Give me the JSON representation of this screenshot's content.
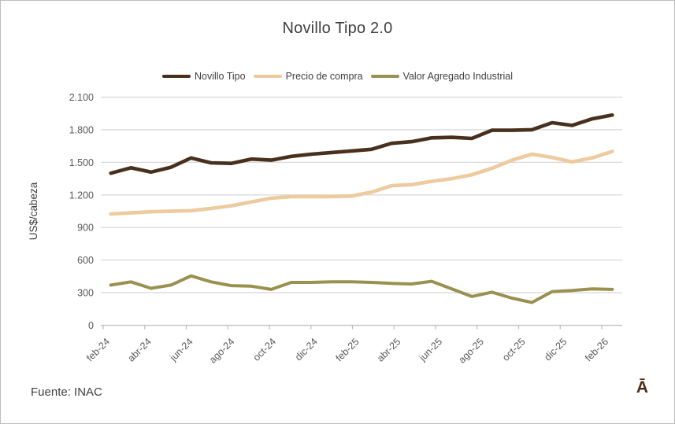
{
  "title": "Novillo Tipo 2.0",
  "source": "Fuente: INAC",
  "logo_glyph": "Ā",
  "colors": {
    "title_text": "#3f3f3f",
    "axis_text": "#595959",
    "gridline": "#d9d9d9",
    "axis_line": "#bfbfbf",
    "frame_border": "#bdbdbd",
    "background": "#ffffff",
    "series_novillo": "#48301d",
    "series_precio": "#eeca9f",
    "series_valor": "#9a9150",
    "logo": "#4c2b15"
  },
  "chart_data": {
    "type": "line",
    "title": "Novillo Tipo 2.0",
    "xlabel": "",
    "ylabel": "US$/cabeza",
    "ylim": [
      0,
      2100
    ],
    "ytick_step": 300,
    "ytick_labels": [
      "0",
      "300",
      "600",
      "900",
      "1.200",
      "1.500",
      "1.800",
      "2.100"
    ],
    "grid": "horizontal",
    "legend_position": "top",
    "categories": [
      "ene-24",
      "feb-24",
      "mar-24",
      "abr-24",
      "may-24",
      "jun-24",
      "jul-24",
      "ago-24",
      "sep-24",
      "oct-24",
      "nov-24",
      "dic-24",
      "ene-25",
      "feb-25",
      "mar-25",
      "abr-25",
      "may-25",
      "jun-25",
      "jul-25",
      "ago-25",
      "sep-25",
      "oct-25",
      "nov-25",
      "dic-25",
      "ene-26",
      "feb-26"
    ],
    "xtick_labels": [
      "feb-24",
      "abr-24",
      "jun-24",
      "ago-24",
      "oct-24",
      "dic-24",
      "feb-25",
      "abr-25",
      "jun-25",
      "ago-25",
      "oct-25",
      "dic-25",
      "feb-26"
    ],
    "series": [
      {
        "name": "Novillo Tipo",
        "color": "#48301d",
        "values": [
          1400,
          1450,
          1410,
          1455,
          1540,
          1495,
          1490,
          1530,
          1520,
          1555,
          1575,
          1590,
          1605,
          1620,
          1675,
          1690,
          1725,
          1730,
          1720,
          1795,
          1795,
          1800,
          1865,
          1840,
          1900,
          1935
        ]
      },
      {
        "name": "Precio de compra",
        "color": "#eeca9f",
        "values": [
          1025,
          1035,
          1045,
          1050,
          1055,
          1075,
          1100,
          1135,
          1170,
          1185,
          1185,
          1185,
          1190,
          1225,
          1285,
          1295,
          1325,
          1350,
          1385,
          1445,
          1520,
          1575,
          1545,
          1505,
          1540,
          1600
        ]
      },
      {
        "name": "Valor Agregado Industrial",
        "color": "#9a9150",
        "values": [
          370,
          400,
          340,
          370,
          455,
          400,
          365,
          360,
          330,
          395,
          395,
          400,
          400,
          395,
          385,
          380,
          405,
          335,
          265,
          305,
          250,
          210,
          310,
          320,
          335,
          330
        ]
      }
    ]
  }
}
